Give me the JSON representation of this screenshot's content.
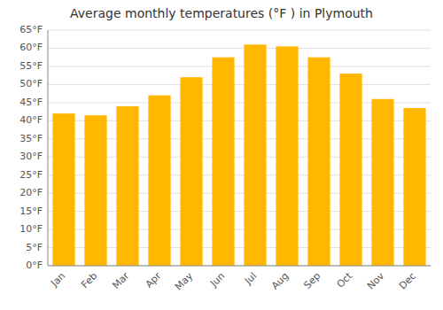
{
  "chart_data": {
    "type": "bar",
    "title": "Average monthly temperatures (°F ) in Plymouth",
    "categories": [
      "Jan",
      "Feb",
      "Mar",
      "Apr",
      "May",
      "Jun",
      "Jul",
      "Aug",
      "Sep",
      "Oct",
      "Nov",
      "Dec"
    ],
    "values": [
      42,
      41.5,
      44,
      47,
      52,
      57.5,
      61,
      60.5,
      57.5,
      53,
      46,
      43.5
    ],
    "color": "#FFB700",
    "ylim": [
      0,
      65
    ],
    "yticks": [
      {
        "value": 0,
        "label": "0°F"
      },
      {
        "value": 5,
        "label": "5°F"
      },
      {
        "value": 10,
        "label": "10°F"
      },
      {
        "value": 15,
        "label": "15°F"
      },
      {
        "value": 20,
        "label": "20°F"
      },
      {
        "value": 25,
        "label": "25°F"
      },
      {
        "value": 30,
        "label": "30°F"
      },
      {
        "value": 35,
        "label": "35°F"
      },
      {
        "value": 40,
        "label": "40°F"
      },
      {
        "value": 45,
        "label": "45°F"
      },
      {
        "value": 50,
        "label": "50°F"
      },
      {
        "value": 55,
        "label": "55°F"
      },
      {
        "value": 60,
        "label": "60°F"
      },
      {
        "value": 65,
        "label": "65°F"
      }
    ],
    "grid": true
  }
}
